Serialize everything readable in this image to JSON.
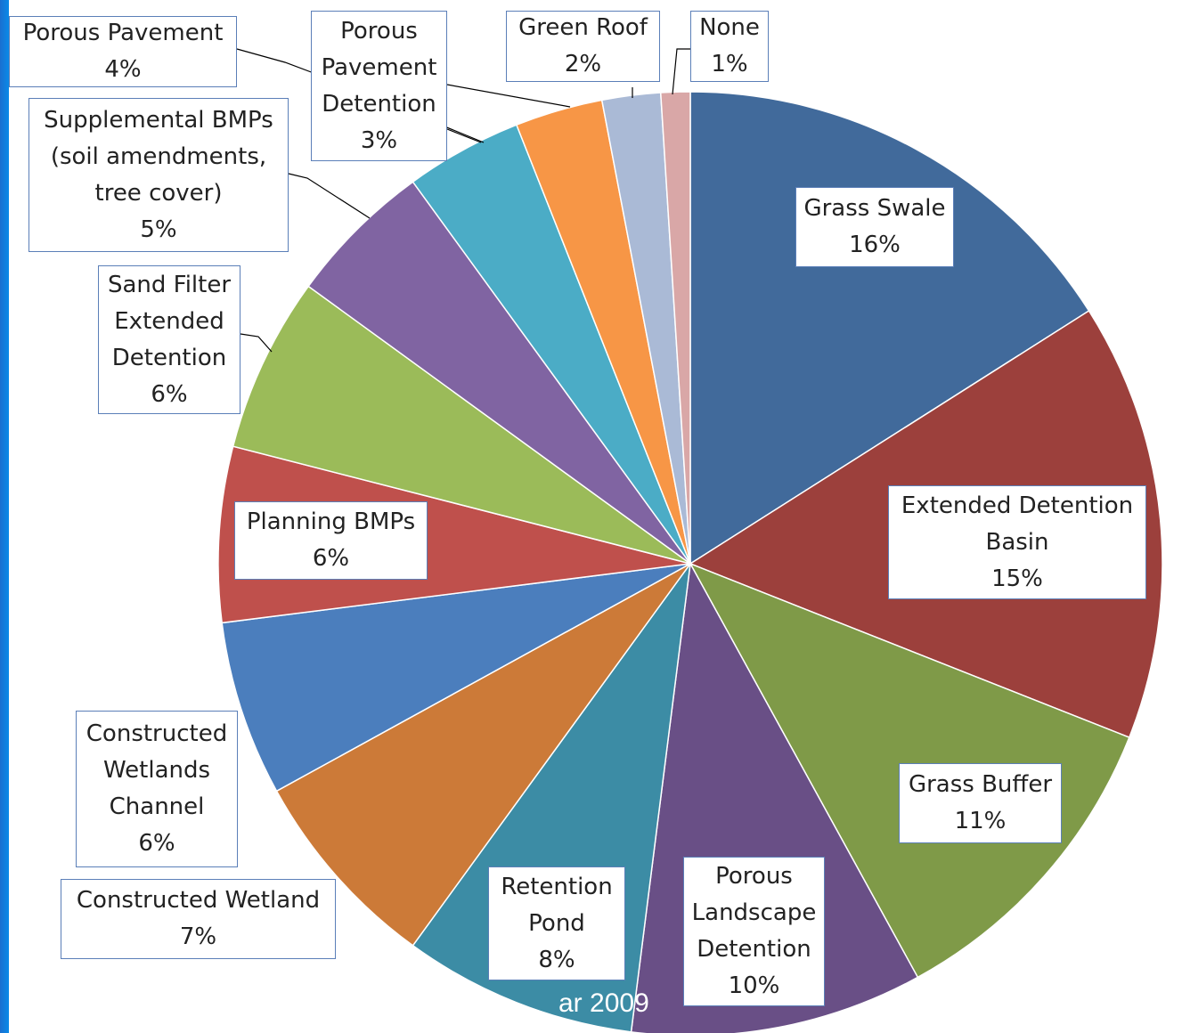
{
  "chart_data": {
    "type": "pie",
    "categories": [
      "Grass Swale",
      "Extended Detention Basin",
      "Grass Buffer",
      "Porous Landscape Detention",
      "Retention Pond",
      "Constructed Wetland",
      "Constructed Wetlands Channel",
      "Planning BMPs",
      "Sand Filter Extended Detention",
      "Supplemental BMPs (soil amendments, tree cover)",
      "Porous Pavement",
      "Porous Pavement Detention",
      "Green Roof",
      "None"
    ],
    "values": [
      16,
      15,
      11,
      10,
      8,
      7,
      6,
      6,
      6,
      5,
      4,
      3,
      2,
      1
    ],
    "value_labels": [
      "16%",
      "15%",
      "11%",
      "10%",
      "8%",
      "7%",
      "6%",
      "6%",
      "6%",
      "5%",
      "4%",
      "3%",
      "2%",
      "1%"
    ],
    "colors": [
      "#416a9b",
      "#9c403c",
      "#7f9a48",
      "#694f86",
      "#3c8ca5",
      "#cc7a38",
      "#4b7ebd",
      "#bf504c",
      "#9bbb59",
      "#8064a2",
      "#4bacc6",
      "#f79646",
      "#aabad6",
      "#d9a7a7"
    ],
    "footer": "ar 2009"
  }
}
